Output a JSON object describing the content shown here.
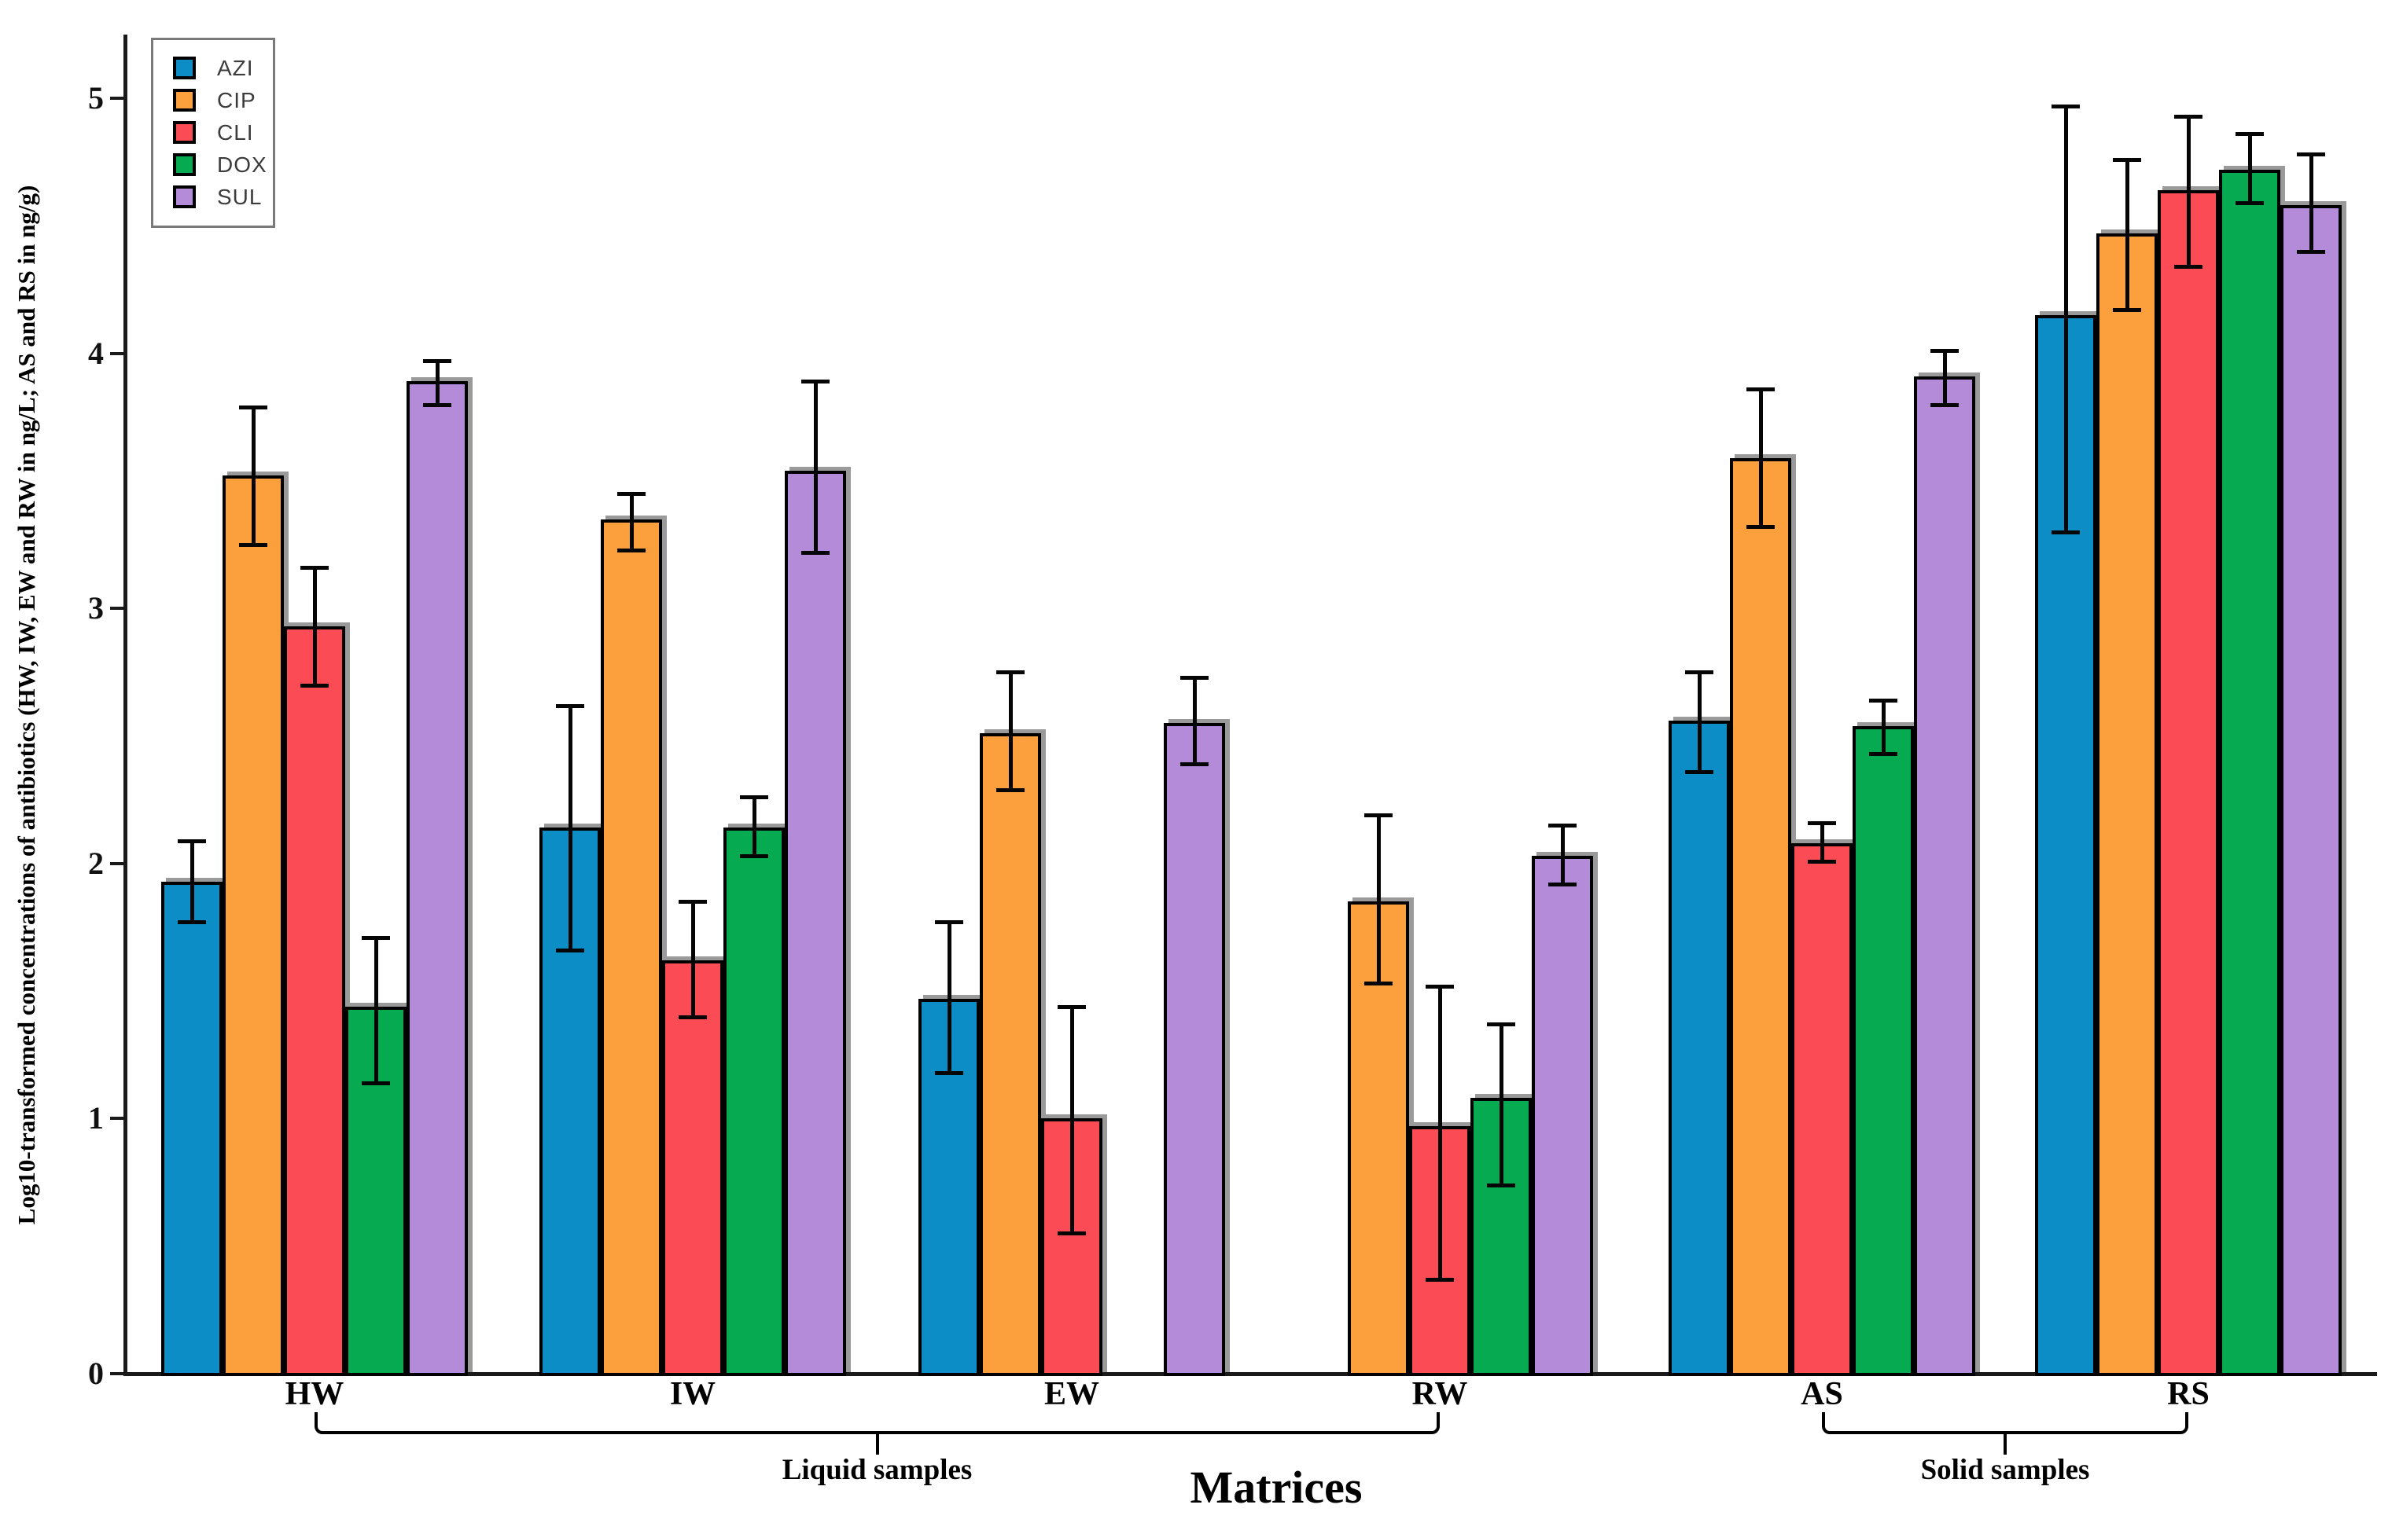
{
  "chart_data": {
    "type": "bar",
    "title": "",
    "xlabel": "Matrices",
    "ylabel": "Log10-transformed concentrations of antibiotics (HW, IW, EW and RW in ng/L; AS and RS in ng/g)",
    "ylim": [
      0,
      5.3
    ],
    "yticks": [
      "0",
      "1",
      "2",
      "3",
      "4",
      "5"
    ],
    "grid": false,
    "legend_position": "top-left",
    "categories": [
      "HW",
      "IW",
      "EW",
      "RW",
      "AS",
      "RS"
    ],
    "series": [
      {
        "name": "AZI",
        "color": "#0d8dc6",
        "values": [
          1.93,
          2.14,
          1.47,
          null,
          2.56,
          4.15
        ],
        "err_low": [
          1.77,
          1.66,
          1.18,
          null,
          2.36,
          3.3
        ],
        "err_high": [
          2.09,
          2.62,
          1.77,
          null,
          2.75,
          4.97
        ]
      },
      {
        "name": "CIP",
        "color": "#fba03c",
        "values": [
          3.52,
          3.35,
          2.51,
          1.85,
          3.59,
          4.47
        ],
        "err_low": [
          3.25,
          3.23,
          2.29,
          1.53,
          3.32,
          4.17
        ],
        "err_high": [
          3.79,
          3.45,
          2.75,
          2.19,
          3.86,
          4.76
        ]
      },
      {
        "name": "CLI",
        "color": "#fb4b55",
        "values": [
          2.93,
          1.62,
          1.0,
          0.97,
          2.08,
          4.64
        ],
        "err_low": [
          2.7,
          1.4,
          0.55,
          0.37,
          2.01,
          4.34
        ],
        "err_high": [
          3.16,
          1.85,
          1.44,
          1.52,
          2.16,
          4.93
        ]
      },
      {
        "name": "DOX",
        "color": "#06ab51",
        "values": [
          1.44,
          2.14,
          null,
          1.08,
          2.54,
          4.72
        ],
        "err_low": [
          1.14,
          2.03,
          null,
          0.74,
          2.43,
          4.59
        ],
        "err_high": [
          1.71,
          2.26,
          null,
          1.37,
          2.64,
          4.86
        ]
      },
      {
        "name": "SUL",
        "color": "#b48bd9",
        "values": [
          3.89,
          3.54,
          2.55,
          2.03,
          3.91,
          4.58
        ],
        "err_low": [
          3.8,
          3.22,
          2.39,
          1.92,
          3.8,
          4.4
        ],
        "err_high": [
          3.97,
          3.89,
          2.73,
          2.15,
          4.01,
          4.78
        ]
      }
    ],
    "bracket_annotations": [
      {
        "label": "Liquid samples",
        "from": "HW",
        "to": "RW"
      },
      {
        "label": "Solid samples",
        "from": "AS",
        "to": "RS"
      }
    ]
  }
}
